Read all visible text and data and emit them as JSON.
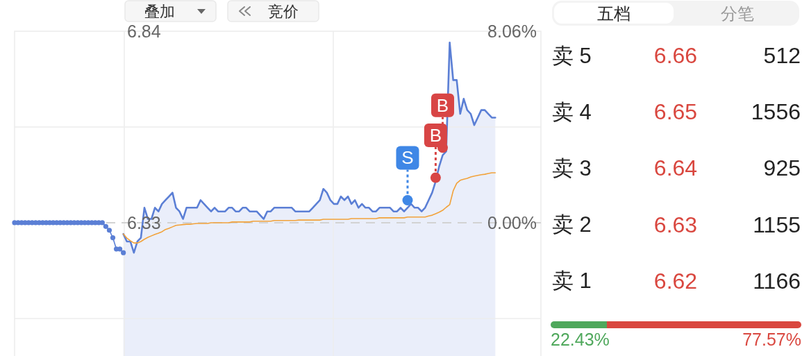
{
  "chart_data": [
    {
      "type": "line",
      "categories": [
        null,
        null,
        null,
        null,
        null,
        null,
        null,
        null,
        null,
        null,
        null,
        null,
        null,
        null,
        null,
        null,
        null,
        null,
        null,
        null,
        null,
        null,
        null,
        null,
        null,
        null,
        null,
        null,
        null,
        null,
        null,
        null,
        null,
        null,
        null,
        null,
        null,
        null,
        null,
        null,
        null,
        null,
        null,
        null,
        null,
        null,
        null,
        null,
        null,
        null,
        null,
        null,
        null,
        null,
        null,
        null,
        null,
        null,
        null,
        null,
        null,
        null,
        null,
        null,
        null,
        null,
        null,
        null,
        null,
        null,
        null,
        null,
        null,
        null,
        null,
        null,
        null,
        null,
        null,
        null,
        null,
        null,
        null,
        null,
        null,
        null,
        null,
        null,
        null,
        null,
        null,
        null,
        null,
        null,
        null,
        null,
        null,
        null,
        null,
        null,
        null,
        null,
        null,
        null,
        null,
        null,
        null,
        null,
        null,
        null,
        null,
        null,
        null,
        null,
        null,
        null,
        null,
        null,
        null,
        null,
        null,
        null,
        null,
        null,
        null,
        null,
        null,
        null,
        null,
        null,
        null,
        null,
        null,
        null,
        null,
        null,
        null,
        null,
        null,
        null,
        null,
        null,
        null,
        null,
        null,
        null,
        null,
        null,
        null,
        null,
        null
      ],
      "ylim": [
        5.975,
        6.84
      ],
      "yticks": [
        {
          "value": 6.84,
          "label": "6.84"
        },
        {
          "value": 6.585,
          "label": null
        },
        {
          "value": 6.33,
          "label": "6.33"
        },
        {
          "value": 6.075,
          "label": null
        }
      ],
      "y2lim": [
        -5.61,
        8.06
      ],
      "y2ticks": [
        {
          "value": 8.06,
          "label": "8.06%"
        },
        {
          "value": 0,
          "label": "0.00%"
        }
      ],
      "grid": "y",
      "ref_lines": [
        {
          "axis": "y",
          "value": 6.33,
          "line_style": "dashed",
          "color": "#d2d2d2"
        }
      ],
      "annotations": [
        "叠加",
        "竞价"
      ],
      "series": [
        {
          "type": "line",
          "color": "#5b7fd5",
          "marker": "circle",
          "values": [
            6.33,
            6.33,
            6.33,
            6.33,
            6.33,
            6.33,
            6.33,
            6.33,
            6.33,
            6.33,
            6.33,
            6.33,
            6.33,
            6.33,
            6.33,
            6.33,
            6.33,
            6.33,
            6.33,
            6.33,
            6.33,
            6.33,
            6.33,
            6.33,
            6.33,
            6.33,
            6.32,
            6.31,
            6.29,
            6.26,
            6.26,
            6.25,
            null,
            null,
            null,
            null,
            null,
            null,
            null,
            null,
            null,
            null,
            null,
            null,
            null,
            null,
            null,
            null,
            null,
            null,
            null,
            null,
            null,
            null,
            null,
            null,
            null,
            null,
            null,
            null,
            null,
            null,
            null,
            null,
            null,
            null,
            null,
            null,
            null,
            null,
            null,
            null,
            null,
            null,
            null,
            null,
            null,
            null,
            null,
            null,
            null,
            null,
            null,
            null,
            null,
            null,
            null,
            null,
            null,
            null,
            null,
            null,
            null,
            null,
            null,
            null,
            null,
            null,
            null,
            null,
            null,
            null,
            null,
            null,
            null,
            null,
            null,
            null,
            null,
            null,
            null,
            null,
            null,
            null,
            null,
            null,
            null,
            null,
            null,
            null,
            null,
            null,
            null,
            null,
            null,
            null,
            null,
            null,
            null,
            null,
            null,
            null,
            null,
            null,
            null,
            null,
            null,
            null,
            null,
            null,
            null,
            null,
            null,
            null,
            null,
            null,
            null,
            null,
            null,
            null,
            null
          ]
        },
        {
          "type": "area",
          "color": "#5b7fd5",
          "values": [
            null,
            null,
            null,
            null,
            null,
            null,
            null,
            null,
            null,
            null,
            null,
            null,
            null,
            null,
            null,
            null,
            null,
            null,
            null,
            null,
            null,
            null,
            null,
            null,
            null,
            null,
            null,
            null,
            null,
            null,
            null,
            6.3,
            6.28,
            6.28,
            6.25,
            6.28,
            6.29,
            6.37,
            6.34,
            6.34,
            6.37,
            6.36,
            6.38,
            6.39,
            6.4,
            6.41,
            6.37,
            6.36,
            6.34,
            6.37,
            6.37,
            6.37,
            6.37,
            6.39,
            6.38,
            6.37,
            6.36,
            6.37,
            6.36,
            6.36,
            6.36,
            6.37,
            6.37,
            6.36,
            6.36,
            6.37,
            6.37,
            6.36,
            6.36,
            6.36,
            6.35,
            6.34,
            6.36,
            6.36,
            6.37,
            6.37,
            6.37,
            6.37,
            6.37,
            6.37,
            6.36,
            6.36,
            6.36,
            6.36,
            6.36,
            6.37,
            6.38,
            6.39,
            6.42,
            6.41,
            6.39,
            6.38,
            6.38,
            6.4,
            6.39,
            6.4,
            6.38,
            6.39,
            6.37,
            6.38,
            6.37,
            6.37,
            6.36,
            6.36,
            6.37,
            6.37,
            6.37,
            6.37,
            6.36,
            6.36,
            6.37,
            6.36,
            6.37,
            6.38,
            6.37,
            6.37,
            6.36,
            6.37,
            6.39,
            6.41,
            6.44,
            6.48,
            6.51,
            6.52,
            6.81,
            6.71,
            6.71,
            6.62,
            6.66,
            6.63,
            6.62,
            6.59,
            6.61,
            6.63,
            6.63,
            6.62,
            6.61,
            6.61,
            null,
            null,
            null,
            null,
            null,
            null,
            null,
            null,
            null,
            null,
            null,
            null,
            null
          ]
        },
        {
          "type": "line",
          "color": "#f2a23a",
          "values": [
            null,
            null,
            null,
            null,
            null,
            null,
            null,
            null,
            null,
            null,
            null,
            null,
            null,
            null,
            null,
            null,
            null,
            null,
            null,
            null,
            null,
            null,
            null,
            null,
            null,
            null,
            null,
            null,
            null,
            null,
            null,
            6.3,
            6.289,
            6.282,
            6.276,
            6.276,
            6.28,
            6.286,
            6.291,
            6.295,
            6.299,
            6.302,
            6.306,
            6.312,
            6.315,
            6.319,
            6.323,
            6.324,
            6.325,
            6.326,
            6.326,
            6.327,
            6.328,
            6.328,
            6.328,
            6.328,
            6.33,
            6.33,
            6.33,
            6.33,
            6.33,
            6.33,
            6.332,
            6.332,
            6.332,
            6.332,
            6.332,
            6.332,
            6.334,
            6.334,
            6.334,
            6.334,
            6.334,
            6.334,
            6.336,
            6.336,
            6.336,
            6.336,
            6.336,
            6.336,
            6.336,
            6.337,
            6.337,
            6.337,
            6.337,
            6.337,
            6.337,
            6.337,
            6.339,
            6.339,
            6.339,
            6.339,
            6.339,
            6.339,
            6.339,
            6.339,
            6.341,
            6.341,
            6.341,
            6.341,
            6.341,
            6.341,
            6.341,
            6.341,
            6.343,
            6.343,
            6.343,
            6.343,
            6.343,
            6.343,
            6.343,
            6.343,
            6.345,
            6.345,
            6.345,
            6.345,
            6.345,
            6.345,
            6.348,
            6.35,
            6.354,
            6.358,
            6.363,
            6.371,
            6.378,
            6.415,
            6.435,
            6.443,
            6.446,
            6.448,
            6.452,
            6.454,
            6.456,
            6.458,
            6.459,
            6.461,
            6.463,
            6.463,
            null,
            null,
            null,
            null,
            null,
            null,
            null,
            null,
            null,
            null,
            null,
            null,
            null
          ]
        },
        {
          "type": "scatter",
          "color": "#3f87e6",
          "marker": "circle",
          "values": [
            null,
            null,
            null,
            null,
            null,
            null,
            null,
            null,
            null,
            null,
            null,
            null,
            null,
            null,
            null,
            null,
            null,
            null,
            null,
            null,
            null,
            null,
            null,
            null,
            null,
            null,
            null,
            null,
            null,
            null,
            null,
            null,
            null,
            null,
            null,
            null,
            null,
            null,
            null,
            null,
            null,
            null,
            null,
            null,
            null,
            null,
            null,
            null,
            null,
            null,
            null,
            null,
            null,
            null,
            null,
            null,
            null,
            null,
            null,
            null,
            null,
            null,
            null,
            null,
            null,
            null,
            null,
            null,
            null,
            null,
            null,
            null,
            null,
            null,
            null,
            null,
            null,
            null,
            null,
            null,
            null,
            null,
            null,
            null,
            null,
            null,
            null,
            null,
            null,
            null,
            null,
            null,
            null,
            null,
            null,
            null,
            null,
            null,
            null,
            null,
            null,
            null,
            null,
            null,
            null,
            null,
            null,
            null,
            null,
            null,
            null,
            null,
            6.39,
            null,
            null,
            null,
            null,
            null,
            null,
            null,
            null,
            null,
            null,
            null,
            null,
            null,
            null,
            null,
            null,
            null,
            null,
            null,
            null,
            null,
            null,
            null,
            null,
            null,
            null,
            null,
            null,
            null,
            null,
            null,
            null,
            null,
            null,
            null,
            null,
            null,
            null
          ],
          "value_labels": [
            null,
            null,
            null,
            null,
            null,
            null,
            null,
            null,
            null,
            null,
            null,
            null,
            null,
            null,
            null,
            null,
            null,
            null,
            null,
            null,
            null,
            null,
            null,
            null,
            null,
            null,
            null,
            null,
            null,
            null,
            null,
            null,
            null,
            null,
            null,
            null,
            null,
            null,
            null,
            null,
            null,
            null,
            null,
            null,
            null,
            null,
            null,
            null,
            null,
            null,
            null,
            null,
            null,
            null,
            null,
            null,
            null,
            null,
            null,
            null,
            null,
            null,
            null,
            null,
            null,
            null,
            null,
            null,
            null,
            null,
            null,
            null,
            null,
            null,
            null,
            null,
            null,
            null,
            null,
            null,
            null,
            null,
            null,
            null,
            null,
            null,
            null,
            null,
            null,
            null,
            null,
            null,
            null,
            null,
            null,
            null,
            null,
            null,
            null,
            null,
            null,
            null,
            null,
            null,
            null,
            null,
            null,
            null,
            null,
            null,
            null,
            null,
            "S",
            null,
            null,
            null,
            null,
            null,
            null,
            null,
            null,
            null,
            null,
            null,
            null,
            null,
            null,
            null,
            null,
            null,
            null,
            null,
            null,
            null,
            null,
            null,
            null,
            null,
            null,
            null,
            null,
            null,
            null,
            null,
            null,
            null,
            null,
            null,
            null,
            null,
            null
          ]
        },
        {
          "type": "scatter",
          "color": "#d84545",
          "marker": "circle",
          "values": [
            null,
            null,
            null,
            null,
            null,
            null,
            null,
            null,
            null,
            null,
            null,
            null,
            null,
            null,
            null,
            null,
            null,
            null,
            null,
            null,
            null,
            null,
            null,
            null,
            null,
            null,
            null,
            null,
            null,
            null,
            null,
            null,
            null,
            null,
            null,
            null,
            null,
            null,
            null,
            null,
            null,
            null,
            null,
            null,
            null,
            null,
            null,
            null,
            null,
            null,
            null,
            null,
            null,
            null,
            null,
            null,
            null,
            null,
            null,
            null,
            null,
            null,
            null,
            null,
            null,
            null,
            null,
            null,
            null,
            null,
            null,
            null,
            null,
            null,
            null,
            null,
            null,
            null,
            null,
            null,
            null,
            null,
            null,
            null,
            null,
            null,
            null,
            null,
            null,
            null,
            null,
            null,
            null,
            null,
            null,
            null,
            null,
            null,
            null,
            null,
            null,
            null,
            null,
            null,
            null,
            null,
            null,
            null,
            null,
            null,
            null,
            null,
            null,
            null,
            null,
            null,
            null,
            null,
            null,
            null,
            6.45,
            null,
            6.53,
            null,
            null,
            null,
            null,
            null,
            null,
            null,
            null,
            null,
            null,
            null,
            null,
            null,
            null,
            null,
            null,
            null,
            null,
            null,
            null,
            null,
            null,
            null,
            null,
            null,
            null,
            null,
            null
          ],
          "value_labels": [
            null,
            null,
            null,
            null,
            null,
            null,
            null,
            null,
            null,
            null,
            null,
            null,
            null,
            null,
            null,
            null,
            null,
            null,
            null,
            null,
            null,
            null,
            null,
            null,
            null,
            null,
            null,
            null,
            null,
            null,
            null,
            null,
            null,
            null,
            null,
            null,
            null,
            null,
            null,
            null,
            null,
            null,
            null,
            null,
            null,
            null,
            null,
            null,
            null,
            null,
            null,
            null,
            null,
            null,
            null,
            null,
            null,
            null,
            null,
            null,
            null,
            null,
            null,
            null,
            null,
            null,
            null,
            null,
            null,
            null,
            null,
            null,
            null,
            null,
            null,
            null,
            null,
            null,
            null,
            null,
            null,
            null,
            null,
            null,
            null,
            null,
            null,
            null,
            null,
            null,
            null,
            null,
            null,
            null,
            null,
            null,
            null,
            null,
            null,
            null,
            null,
            null,
            null,
            null,
            null,
            null,
            null,
            null,
            null,
            null,
            null,
            null,
            null,
            null,
            null,
            null,
            null,
            null,
            null,
            null,
            "B",
            null,
            "B",
            null,
            null,
            null,
            null,
            null,
            null,
            null,
            null,
            null,
            null,
            null,
            null,
            null,
            null,
            null,
            null,
            null,
            null,
            null,
            null,
            null,
            null,
            null,
            null,
            null,
            null,
            null,
            null
          ]
        }
      ]
    },
    {
      "type": "other",
      "categories": [
        "卖 5",
        "卖 4",
        "卖 3",
        "卖 2",
        "卖 1"
      ],
      "annotations": [
        "五档",
        "分笔"
      ],
      "data_labels": true,
      "series": [
        {
          "color": "#d9473f",
          "values": [
            6.66,
            6.65,
            6.64,
            6.63,
            6.62
          ]
        },
        {
          "color": "#222222",
          "values": [
            512,
            1556,
            925,
            1155,
            1166
          ]
        }
      ]
    },
    {
      "type": "bar",
      "orientation": "horizontal",
      "stacked": true,
      "categories": [
        null
      ],
      "series": [
        {
          "color": "#4fa85c",
          "values": [
            22.43
          ],
          "value_labels": [
            "22.43%"
          ]
        },
        {
          "color": "#d9473f",
          "values": [
            77.57
          ],
          "value_labels": [
            "77.57%"
          ]
        }
      ]
    }
  ]
}
